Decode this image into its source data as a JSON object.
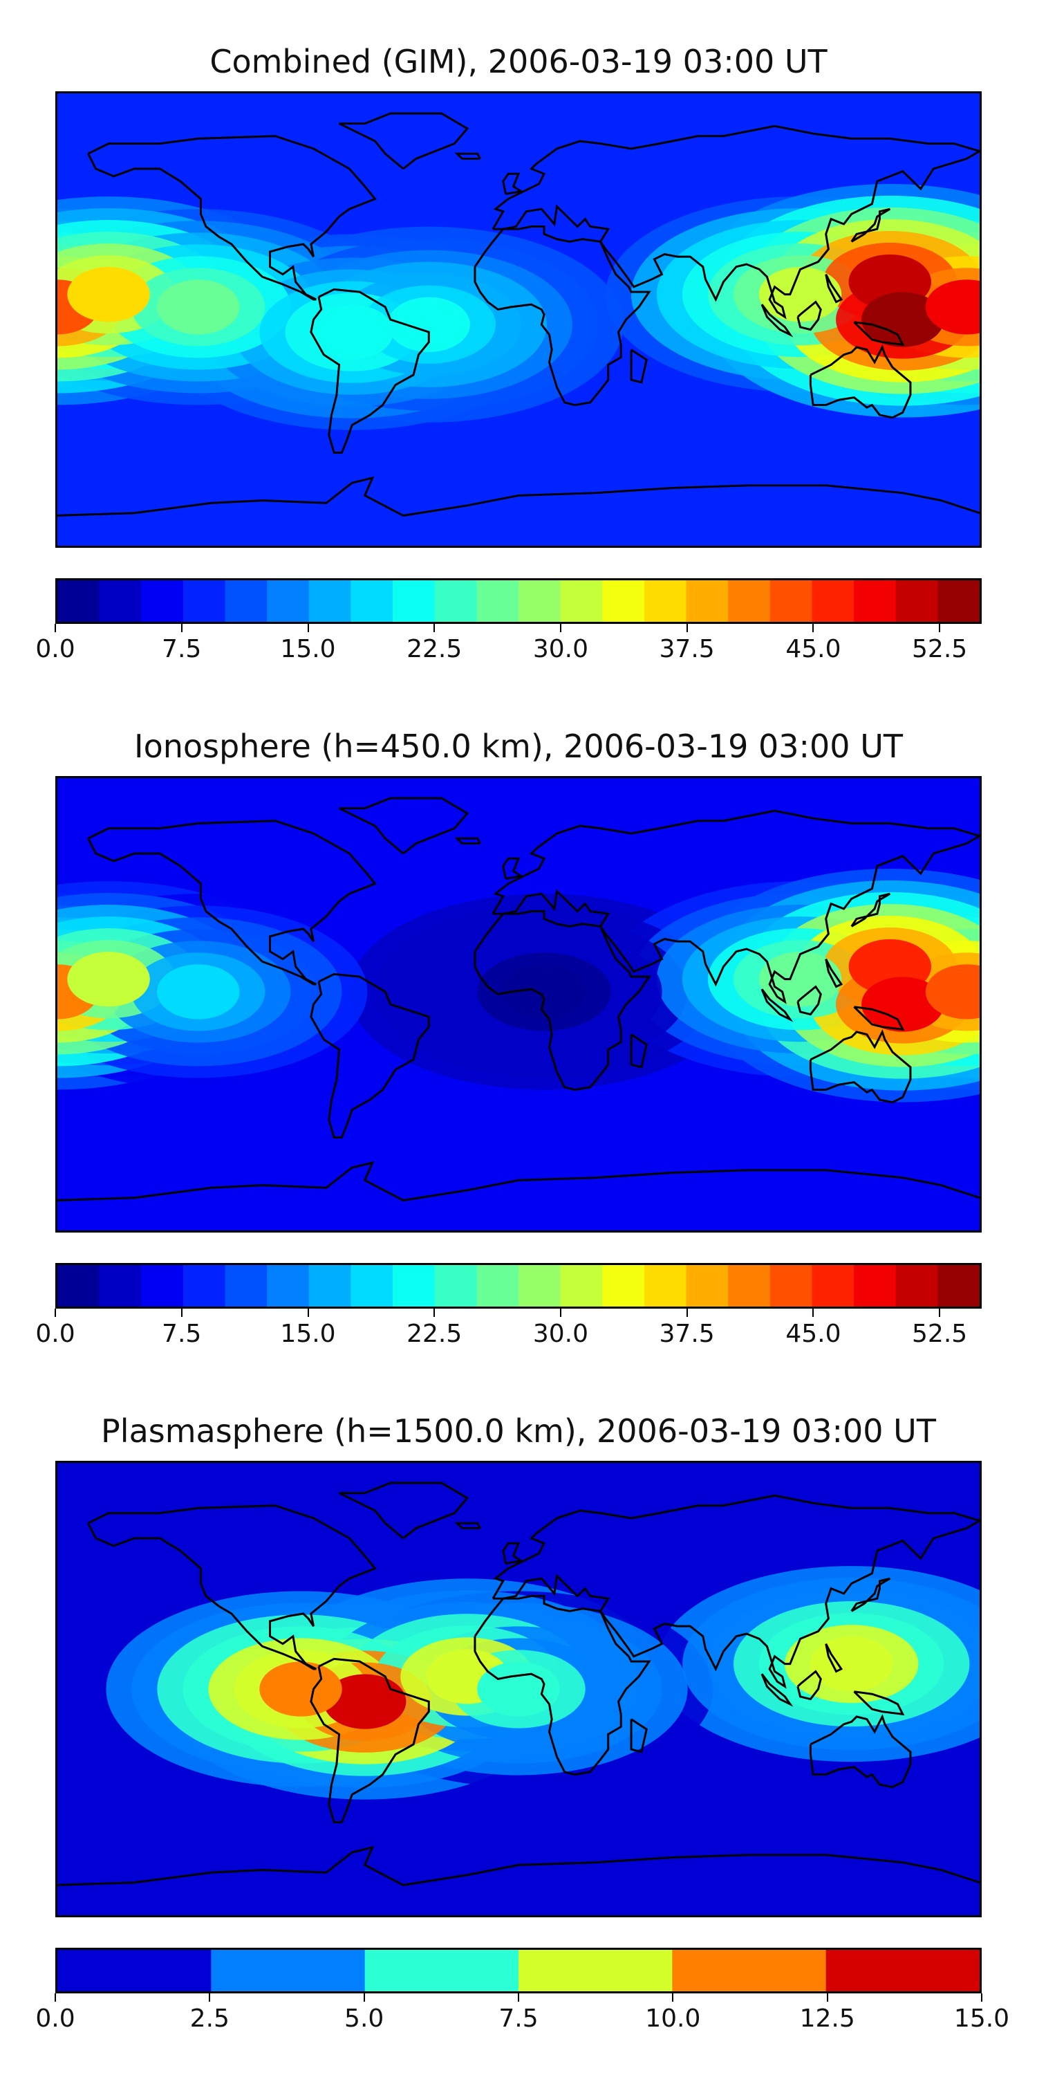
{
  "chart_data": [
    {
      "type": "heatmap",
      "title": "Combined (GIM), 2006-03-19 03:00 UT",
      "colorbar": {
        "vmin": 0.0,
        "vmax": 55.0,
        "levels": 22,
        "ticks": [
          "0.0",
          "7.5",
          "15.0",
          "22.5",
          "30.0",
          "37.5",
          "45.0",
          "52.5"
        ],
        "tick_values": [
          0.0,
          7.5,
          15.0,
          22.5,
          30.0,
          37.5,
          45.0,
          52.5
        ]
      },
      "features": [
        {
          "lon": -180,
          "lat": 5,
          "value": 44
        },
        {
          "lon": -160,
          "lat": 10,
          "value": 35
        },
        {
          "lon": -125,
          "lat": 5,
          "value": 26
        },
        {
          "lon": -65,
          "lat": -5,
          "value": 22
        },
        {
          "lon": -35,
          "lat": -2,
          "value": 20
        },
        {
          "lon": 110,
          "lat": 10,
          "value": 30
        },
        {
          "lon": 145,
          "lat": 15,
          "value": 50
        },
        {
          "lon": 150,
          "lat": 0,
          "value": 54
        },
        {
          "lon": 175,
          "lat": 5,
          "value": 48
        }
      ]
    },
    {
      "type": "heatmap",
      "title": "Ionosphere  (h=450.0 km), 2006-03-19 03:00 UT",
      "colorbar": {
        "vmin": 0.0,
        "vmax": 55.0,
        "levels": 22,
        "ticks": [
          "0.0",
          "7.5",
          "15.0",
          "22.5",
          "30.0",
          "37.5",
          "45.0",
          "52.5"
        ],
        "tick_values": [
          0.0,
          7.5,
          15.0,
          22.5,
          30.0,
          37.5,
          45.0,
          52.5
        ]
      },
      "features": [
        {
          "lon": -180,
          "lat": 5,
          "value": 40
        },
        {
          "lon": -160,
          "lat": 10,
          "value": 30
        },
        {
          "lon": -125,
          "lat": 5,
          "value": 18
        },
        {
          "lon": 10,
          "lat": 5,
          "value": 2
        },
        {
          "lon": 110,
          "lat": 10,
          "value": 26
        },
        {
          "lon": 145,
          "lat": 15,
          "value": 45
        },
        {
          "lon": 150,
          "lat": 0,
          "value": 48
        },
        {
          "lon": 175,
          "lat": 5,
          "value": 44
        }
      ]
    },
    {
      "type": "heatmap",
      "title": "Plasmasphere (h=1500.0 km), 2006-03-19 03:00 UT",
      "colorbar": {
        "vmin": 0.0,
        "vmax": 15.0,
        "levels": 6,
        "ticks": [
          "0.0",
          "2.5",
          "5.0",
          "7.5",
          "10.0",
          "12.5",
          "15.0"
        ],
        "tick_values": [
          0.0,
          2.5,
          5.0,
          7.5,
          10.0,
          12.5,
          15.0
        ]
      },
      "features": [
        {
          "lon": -60,
          "lat": -5,
          "value": 13.5
        },
        {
          "lon": -85,
          "lat": 0,
          "value": 11
        },
        {
          "lon": -20,
          "lat": 5,
          "value": 9
        },
        {
          "lon": 130,
          "lat": 10,
          "value": 8.5
        },
        {
          "lon": 0,
          "lat": 0,
          "value": 6
        }
      ]
    }
  ]
}
